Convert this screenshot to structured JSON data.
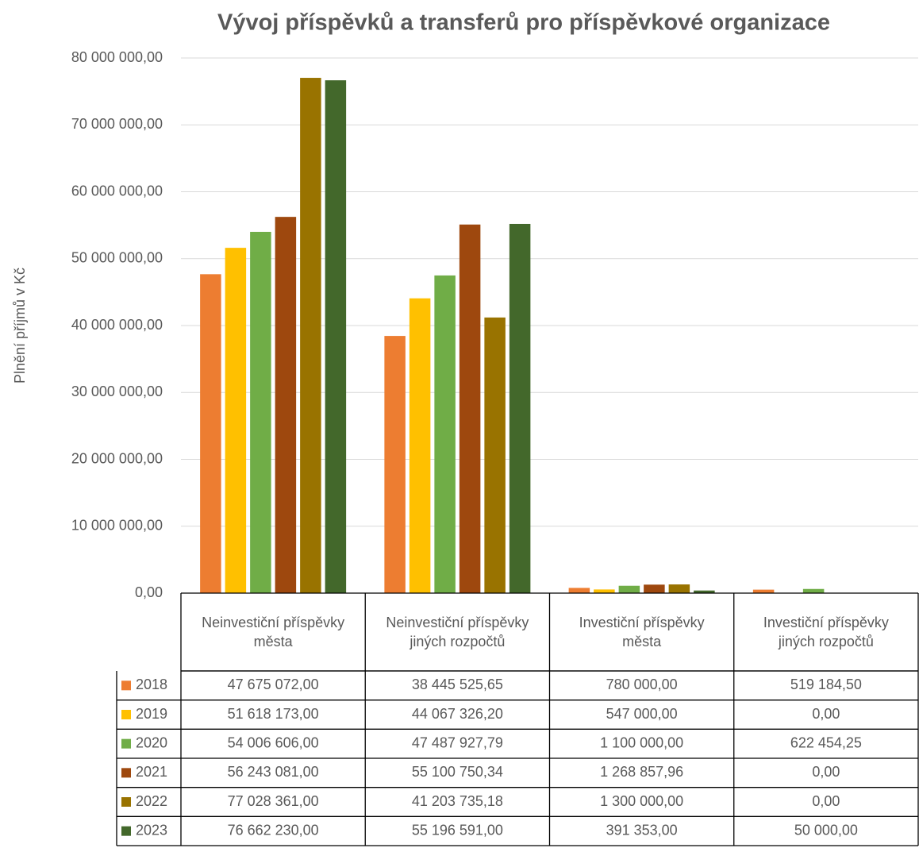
{
  "chart_data": {
    "type": "bar",
    "title": "Vývoj příspěvků a transferů pro příspěvkové organizace",
    "y_label": "Plnění příjmů v Kč",
    "categories": [
      "Neinvestiční příspěvky města",
      "Neinvestiční příspěvky jiných rozpočtů",
      "Investiční příspěvky města",
      "Investiční příspěvky jiných rozpočtů"
    ],
    "series": [
      {
        "name": "2018",
        "color": "#ED7D31",
        "values": [
          47675072.0,
          38445525.65,
          780000.0,
          519184.5
        ],
        "value_labels": [
          "47 675 072,00",
          "38 445 525,65",
          "780 000,00",
          "519 184,50"
        ]
      },
      {
        "name": "2019",
        "color": "#FFC000",
        "values": [
          51618173.0,
          44067326.2,
          547000.0,
          0.0
        ],
        "value_labels": [
          "51 618 173,00",
          "44 067 326,20",
          "547 000,00",
          "0,00"
        ]
      },
      {
        "name": "2020",
        "color": "#70AD47",
        "values": [
          54006606.0,
          47487927.79,
          1100000.0,
          622454.25
        ],
        "value_labels": [
          "54 006 606,00",
          "47 487 927,79",
          "1 100 000,00",
          "622 454,25"
        ]
      },
      {
        "name": "2021",
        "color": "#9E480E",
        "values": [
          56243081.0,
          55100750.34,
          1268857.96,
          0.0
        ],
        "value_labels": [
          "56 243 081,00",
          "55 100 750,34",
          "1 268 857,96",
          "0,00"
        ]
      },
      {
        "name": "2022",
        "color": "#997300",
        "values": [
          77028361.0,
          41203735.18,
          1300000.0,
          0.0
        ],
        "value_labels": [
          "77 028 361,00",
          "41 203 735,18",
          "1 300 000,00",
          "0,00"
        ]
      },
      {
        "name": "2023",
        "color": "#43682B",
        "values": [
          76662230.0,
          55196591.0,
          391353.0,
          50000.0
        ],
        "value_labels": [
          "76 662 230,00",
          "55 196 591,00",
          "391 353,00",
          "50 000,00"
        ]
      }
    ],
    "ylim": [
      0,
      80000000
    ],
    "yticks": [
      {
        "value": 0,
        "label": "0,00"
      },
      {
        "value": 10000000,
        "label": "10 000 000,00"
      },
      {
        "value": 20000000,
        "label": "20 000 000,00"
      },
      {
        "value": 30000000,
        "label": "30 000 000,00"
      },
      {
        "value": 40000000,
        "label": "40 000 000,00"
      },
      {
        "value": 50000000,
        "label": "50 000 000,00"
      },
      {
        "value": 60000000,
        "label": "60 000 000,00"
      },
      {
        "value": 70000000,
        "label": "70 000 000,00"
      },
      {
        "value": 80000000,
        "label": "80 000 000,00"
      }
    ],
    "grid": true
  }
}
